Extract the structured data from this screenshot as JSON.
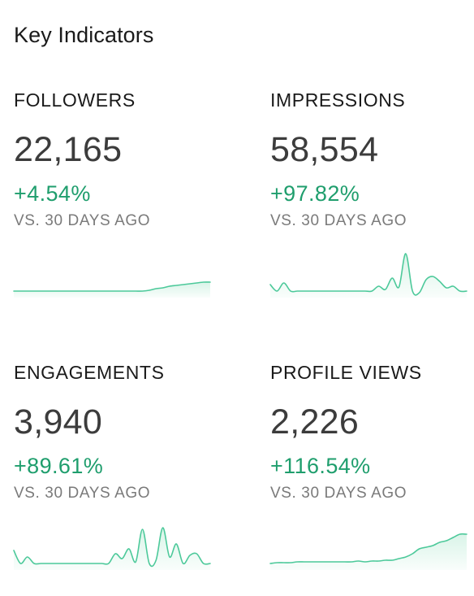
{
  "header": {
    "title": "Key Indicators"
  },
  "colors": {
    "accent": "#1f9e6d",
    "spark_line": "#4cc99a",
    "spark_fill": "#d9f4e8"
  },
  "indicators": [
    {
      "label": "FOLLOWERS",
      "value": "22,165",
      "change": "+4.54%",
      "comparison": "VS. 30 DAYS AGO",
      "sparkline": [
        2,
        2,
        2,
        2,
        2,
        2,
        2,
        2,
        2,
        2,
        2,
        2,
        2,
        2,
        2,
        2,
        2,
        2,
        2,
        2,
        3,
        5,
        6,
        8,
        9,
        10,
        11,
        12,
        13,
        13
      ]
    },
    {
      "label": "IMPRESSIONS",
      "value": "58,554",
      "change": "+97.82%",
      "comparison": "VS. 30 DAYS AGO",
      "sparkline": [
        10,
        2,
        12,
        2,
        2,
        2,
        2,
        2,
        2,
        2,
        2,
        2,
        2,
        2,
        2,
        2,
        8,
        4,
        18,
        7,
        48,
        2,
        0,
        16,
        20,
        14,
        6,
        8,
        2,
        2
      ]
    },
    {
      "label": "ENGAGEMENTS",
      "value": "3,940",
      "change": "+89.61%",
      "comparison": "VS. 30 DAYS AGO",
      "sparkline": [
        18,
        2,
        10,
        2,
        2,
        2,
        2,
        2,
        2,
        2,
        2,
        2,
        2,
        2,
        2,
        14,
        8,
        20,
        4,
        44,
        2,
        6,
        46,
        10,
        26,
        2,
        12,
        14,
        2,
        2
      ]
    },
    {
      "label": "PROFILE VIEWS",
      "value": "2,226",
      "change": "+116.54%",
      "comparison": "VS. 30 DAYS AGO",
      "sparkline": [
        2,
        3,
        3,
        3,
        4,
        4,
        4,
        4,
        4,
        4,
        4,
        4,
        4,
        5,
        4,
        5,
        5,
        6,
        6,
        8,
        10,
        14,
        20,
        22,
        24,
        28,
        30,
        34,
        38,
        38
      ]
    }
  ]
}
